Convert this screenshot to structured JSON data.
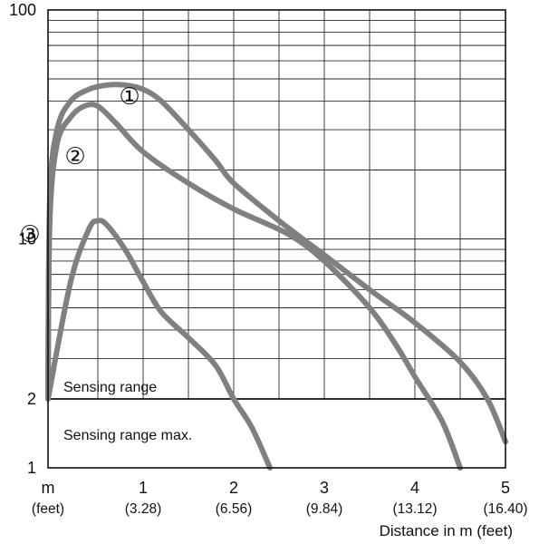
{
  "chart_data": {
    "type": "line",
    "xlabel": "Distance in m (feet)",
    "y_scale": "log",
    "ylim": [
      1,
      100
    ],
    "xlim": [
      -0.05,
      5
    ],
    "grid": true,
    "y_ticks": [
      {
        "value": 1,
        "label": "1"
      },
      {
        "value": 2,
        "label": "2"
      },
      {
        "value": 10,
        "label": "10"
      },
      {
        "value": 100,
        "label": "100"
      }
    ],
    "x_ticks": [
      {
        "value": -0.05,
        "label": "m",
        "sublabel": "(feet)"
      },
      {
        "value": 1,
        "label": "1",
        "sublabel": "(3.28)"
      },
      {
        "value": 2,
        "label": "2",
        "sublabel": "(6.56)"
      },
      {
        "value": 3,
        "label": "3",
        "sublabel": "(9.84)"
      },
      {
        "value": 4,
        "label": "4",
        "sublabel": "(13.12)"
      },
      {
        "value": 5,
        "label": "5",
        "sublabel": "(16.40)"
      }
    ],
    "threshold": {
      "value": 2
    },
    "region_labels": {
      "upper": "Sensing range",
      "lower": "Sensing range max."
    },
    "curve_color": "#808080",
    "series": [
      {
        "marker": "①",
        "label_at": [
          0.85,
          42
        ],
        "points": [
          [
            -0.05,
            2.0
          ],
          [
            -0.03,
            15
          ],
          [
            0.05,
            30
          ],
          [
            0.2,
            40
          ],
          [
            0.4,
            45
          ],
          [
            0.6,
            47
          ],
          [
            0.8,
            47
          ],
          [
            1.0,
            45
          ],
          [
            1.2,
            40
          ],
          [
            1.5,
            30
          ],
          [
            1.8,
            22
          ],
          [
            2.0,
            17.5
          ],
          [
            2.5,
            12
          ],
          [
            3.0,
            8.5
          ],
          [
            3.5,
            6.0
          ],
          [
            4.0,
            4.3
          ],
          [
            4.5,
            2.9
          ],
          [
            4.8,
            2.0
          ],
          [
            5.0,
            1.3
          ]
        ]
      },
      {
        "marker": "②",
        "label_at": [
          0.25,
          23
        ],
        "points": [
          [
            -0.05,
            2.0
          ],
          [
            -0.03,
            12
          ],
          [
            0.05,
            26
          ],
          [
            0.2,
            34
          ],
          [
            0.35,
            38
          ],
          [
            0.5,
            38
          ],
          [
            0.7,
            32
          ],
          [
            1.0,
            24
          ],
          [
            1.5,
            17.5
          ],
          [
            2.0,
            13.5
          ],
          [
            2.6,
            10.5
          ],
          [
            3.0,
            8.0
          ],
          [
            3.5,
            5.0
          ],
          [
            3.8,
            3.4
          ],
          [
            4.0,
            2.5
          ],
          [
            4.3,
            1.6
          ],
          [
            4.5,
            1.0
          ]
        ]
      },
      {
        "marker": "③",
        "label_at": [
          -0.25,
          10.5
        ],
        "points": [
          [
            -0.05,
            2.0
          ],
          [
            0.2,
            6.5
          ],
          [
            0.4,
            11
          ],
          [
            0.5,
            12
          ],
          [
            0.6,
            11.5
          ],
          [
            0.8,
            9
          ],
          [
            1.0,
            6.5
          ],
          [
            1.2,
            4.8
          ],
          [
            1.5,
            3.7
          ],
          [
            1.8,
            2.8
          ],
          [
            2.0,
            2.0
          ],
          [
            2.2,
            1.5
          ],
          [
            2.4,
            1.0
          ]
        ]
      }
    ]
  }
}
